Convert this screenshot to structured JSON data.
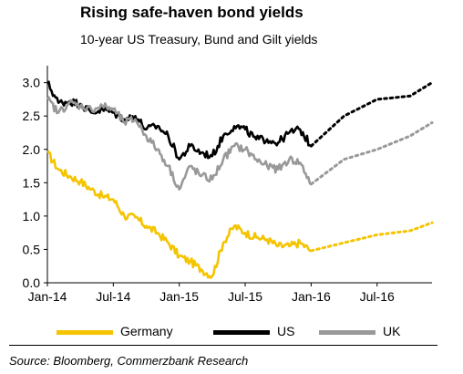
{
  "chart_data": {
    "type": "line",
    "title": "Rising safe-haven bond yields",
    "subtitle": "10-year US Treasury, Bund and Gilt yields",
    "x_ticks": [
      "Jan-14",
      "Jul-14",
      "Jan-15",
      "Jul-15",
      "Jan-16",
      "Jul-16"
    ],
    "y_ticks": [
      "0.0",
      "0.5",
      "1.0",
      "1.5",
      "2.0",
      "2.5",
      "3.0"
    ],
    "ylim": [
      0,
      3.2
    ],
    "xlim": [
      "2014-01",
      "2016-12"
    ],
    "grid": false,
    "legend_position": "bottom",
    "series": [
      {
        "name": "Germany",
        "color": "#f5c400",
        "actual": [
          [
            "2014-01",
            1.95
          ],
          [
            "2014-02",
            1.7
          ],
          [
            "2014-03",
            1.6
          ],
          [
            "2014-04",
            1.52
          ],
          [
            "2014-05",
            1.4
          ],
          [
            "2014-06",
            1.3
          ],
          [
            "2014-07",
            1.25
          ],
          [
            "2014-08",
            1.0
          ],
          [
            "2014-09",
            0.98
          ],
          [
            "2014-10",
            0.85
          ],
          [
            "2014-11",
            0.75
          ],
          [
            "2014-12",
            0.6
          ],
          [
            "2015-01",
            0.4
          ],
          [
            "2015-02",
            0.32
          ],
          [
            "2015-03",
            0.2
          ],
          [
            "2015-04",
            0.1
          ],
          [
            "2015-05",
            0.6
          ],
          [
            "2015-06",
            0.85
          ],
          [
            "2015-07",
            0.75
          ],
          [
            "2015-08",
            0.68
          ],
          [
            "2015-09",
            0.65
          ],
          [
            "2015-10",
            0.55
          ],
          [
            "2015-11",
            0.55
          ],
          [
            "2015-12",
            0.6
          ],
          [
            "2016-01",
            0.48
          ]
        ],
        "forecast": [
          [
            "2016-01",
            0.48
          ],
          [
            "2016-04",
            0.6
          ],
          [
            "2016-07",
            0.72
          ],
          [
            "2016-10",
            0.78
          ],
          [
            "2016-12",
            0.9
          ]
        ]
      },
      {
        "name": "US",
        "color": "#000000",
        "actual": [
          [
            "2014-01",
            3.0
          ],
          [
            "2014-02",
            2.7
          ],
          [
            "2014-03",
            2.72
          ],
          [
            "2014-04",
            2.68
          ],
          [
            "2014-05",
            2.55
          ],
          [
            "2014-06",
            2.6
          ],
          [
            "2014-07",
            2.55
          ],
          [
            "2014-08",
            2.45
          ],
          [
            "2014-09",
            2.5
          ],
          [
            "2014-10",
            2.3
          ],
          [
            "2014-11",
            2.35
          ],
          [
            "2014-12",
            2.2
          ],
          [
            "2015-01",
            1.85
          ],
          [
            "2015-02",
            2.05
          ],
          [
            "2015-03",
            1.95
          ],
          [
            "2015-04",
            1.9
          ],
          [
            "2015-05",
            2.2
          ],
          [
            "2015-06",
            2.35
          ],
          [
            "2015-07",
            2.3
          ],
          [
            "2015-08",
            2.15
          ],
          [
            "2015-09",
            2.15
          ],
          [
            "2015-10",
            2.1
          ],
          [
            "2015-11",
            2.25
          ],
          [
            "2015-12",
            2.3
          ],
          [
            "2016-01",
            2.05
          ]
        ],
        "forecast": [
          [
            "2016-01",
            2.05
          ],
          [
            "2016-04",
            2.5
          ],
          [
            "2016-07",
            2.75
          ],
          [
            "2016-10",
            2.8
          ],
          [
            "2016-12",
            3.0
          ]
        ]
      },
      {
        "name": "UK",
        "color": "#999999",
        "actual": [
          [
            "2014-01",
            2.75
          ],
          [
            "2014-02",
            2.55
          ],
          [
            "2014-03",
            2.7
          ],
          [
            "2014-04",
            2.65
          ],
          [
            "2014-05",
            2.6
          ],
          [
            "2014-06",
            2.65
          ],
          [
            "2014-07",
            2.6
          ],
          [
            "2014-08",
            2.4
          ],
          [
            "2014-09",
            2.45
          ],
          [
            "2014-10",
            2.2
          ],
          [
            "2014-11",
            2.0
          ],
          [
            "2014-12",
            1.75
          ],
          [
            "2015-01",
            1.4
          ],
          [
            "2015-02",
            1.75
          ],
          [
            "2015-03",
            1.6
          ],
          [
            "2015-04",
            1.55
          ],
          [
            "2015-05",
            1.85
          ],
          [
            "2015-06",
            2.05
          ],
          [
            "2015-07",
            2.0
          ],
          [
            "2015-08",
            1.85
          ],
          [
            "2015-09",
            1.75
          ],
          [
            "2015-10",
            1.7
          ],
          [
            "2015-11",
            1.85
          ],
          [
            "2015-12",
            1.8
          ],
          [
            "2016-01",
            1.48
          ]
        ],
        "forecast": [
          [
            "2016-01",
            1.48
          ],
          [
            "2016-04",
            1.85
          ],
          [
            "2016-07",
            2.0
          ],
          [
            "2016-10",
            2.2
          ],
          [
            "2016-12",
            2.4
          ]
        ]
      }
    ],
    "source": "Source: Bloomberg, Commerzbank Research"
  }
}
